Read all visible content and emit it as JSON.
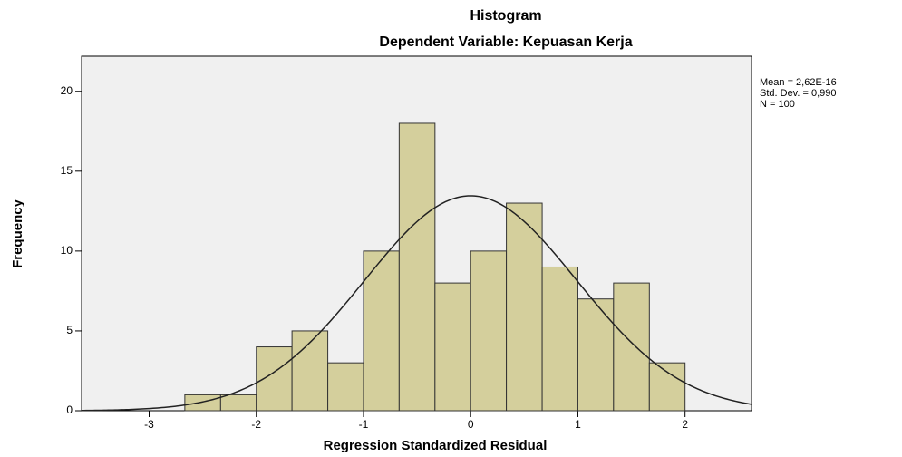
{
  "chart_data": {
    "type": "histogram",
    "title": "Histogram",
    "subtitle": "Dependent Variable: Kepuasan Kerja",
    "xlabel": "Regression Standardized Residual",
    "ylabel": "Frequency",
    "bins": [
      -2.667,
      -2.333,
      -2,
      -1.667,
      -1.333,
      -1,
      -0.667,
      -0.333,
      0,
      0.333,
      0.667,
      1,
      1.333,
      1.667,
      2
    ],
    "values": [
      1,
      1,
      4,
      5,
      3,
      10,
      18,
      8,
      10,
      13,
      9,
      7,
      8,
      3
    ],
    "color": "#d4cf9c",
    "xlim": [
      -3.63,
      2.62
    ],
    "xticks": [
      -3,
      -2,
      -1,
      0,
      1,
      2
    ],
    "ylim": [
      0,
      22.2
    ],
    "yticks": [
      0,
      5,
      10,
      15,
      20
    ],
    "stats": [
      {
        "value": 2.62e-16,
        "label": "Mean = 2,62E-16"
      },
      {
        "value": 0.99,
        "label": "Std. Dev. = 0,990"
      },
      {
        "value": 100,
        "label": "N = 100"
      }
    ],
    "normal_curve": true
  }
}
